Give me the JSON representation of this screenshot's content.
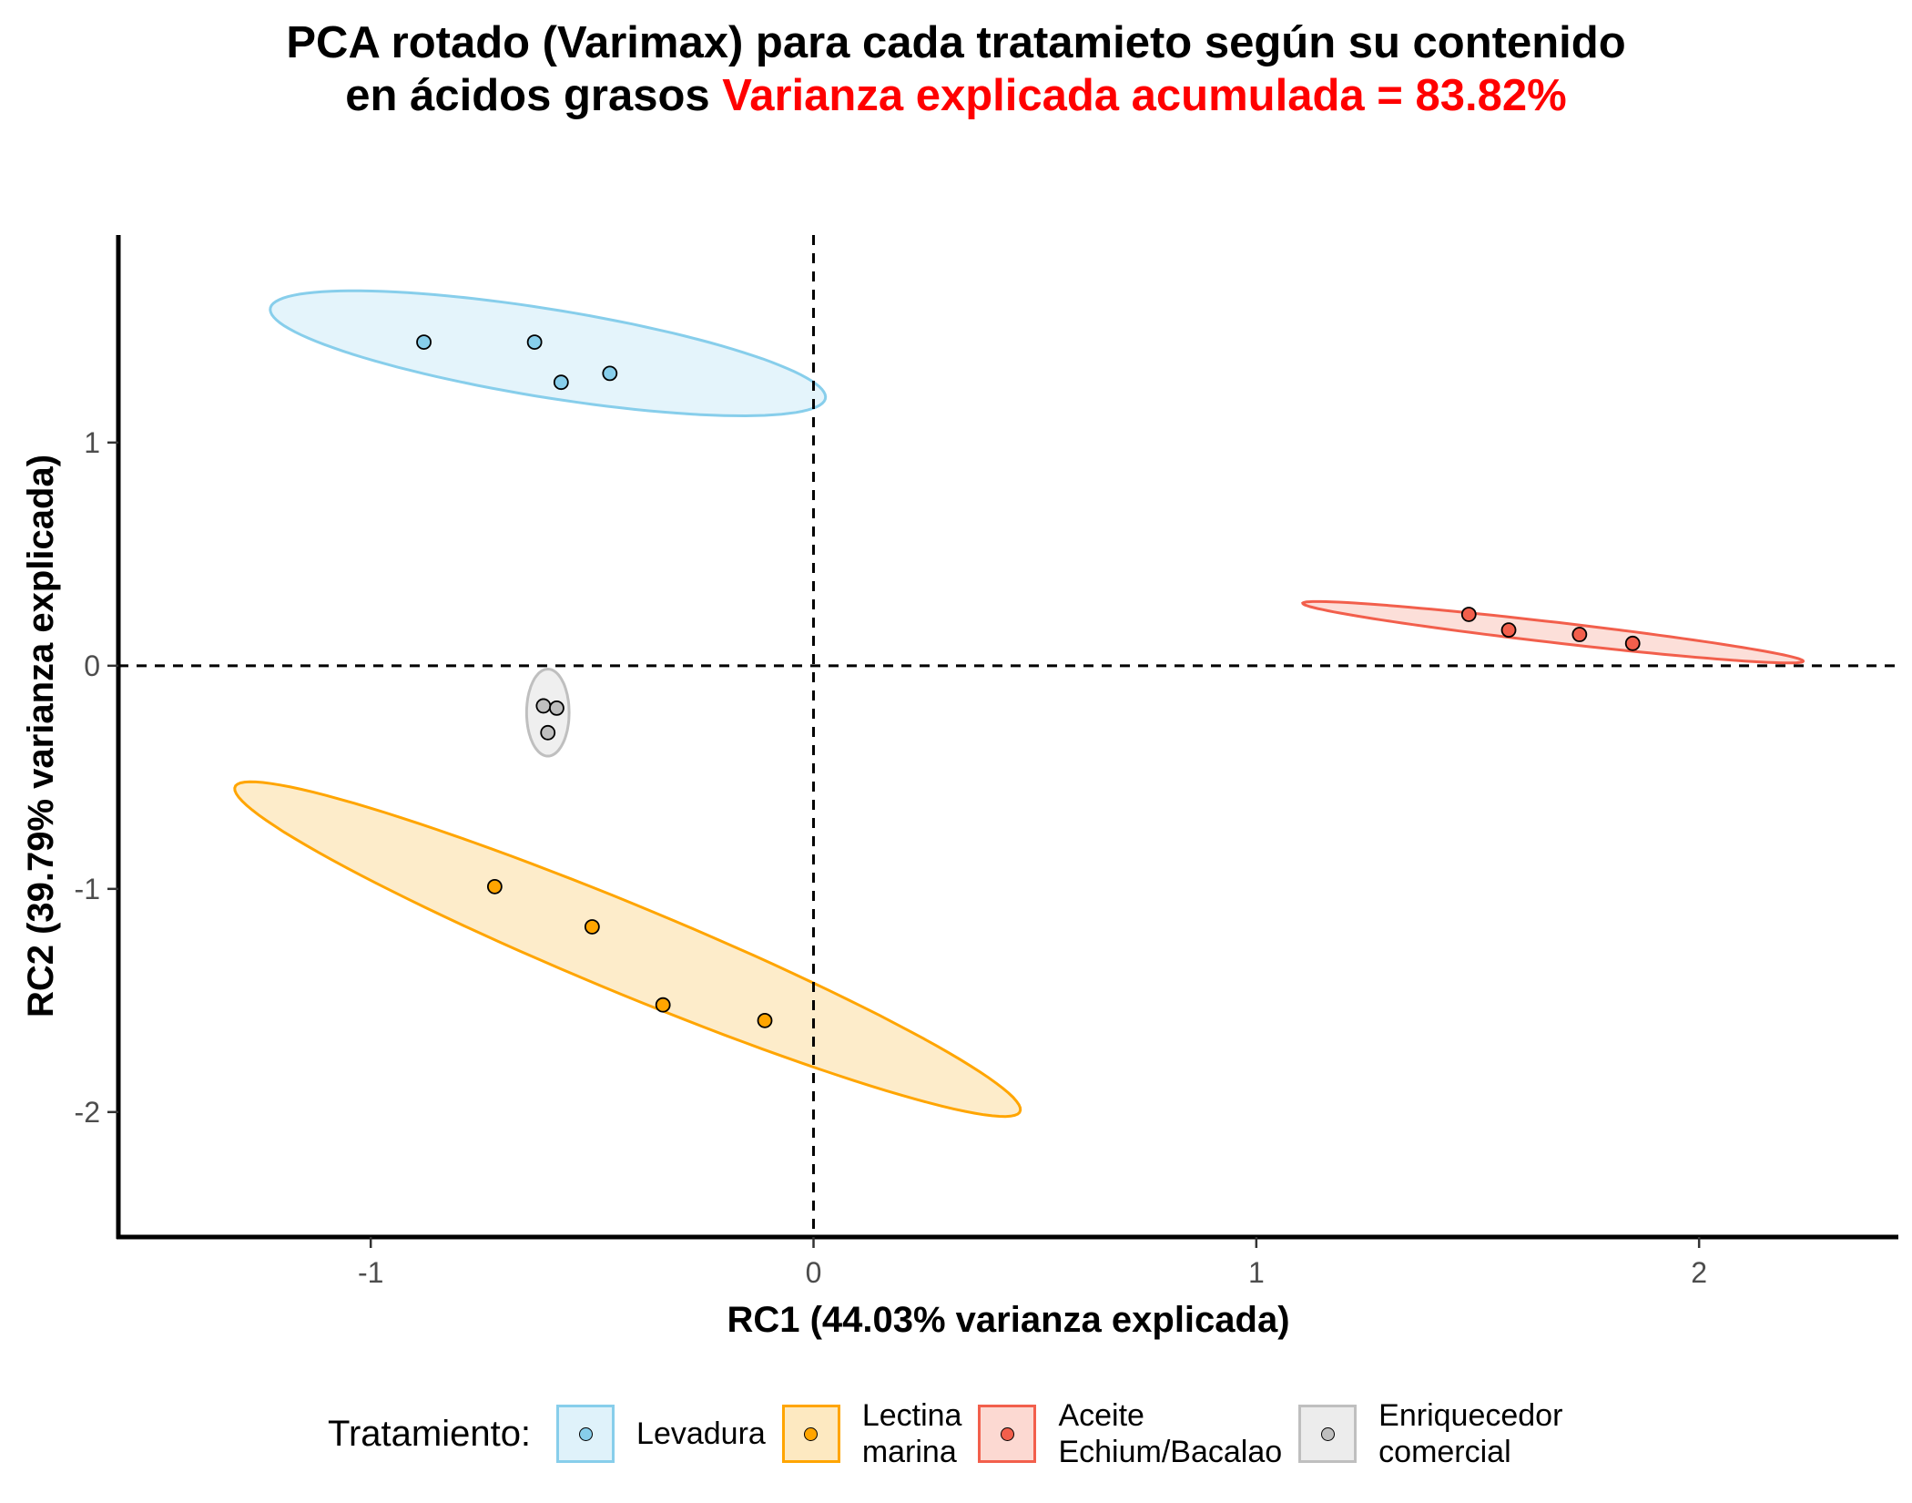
{
  "title": {
    "line1": "PCA rotado (Varimax) para cada tratamieto según su contenido",
    "line2_prefix": "en ácidos grasos ",
    "line2_highlight": "Varianza explicada acumulada = 83.82%",
    "highlight_color": "#ff0000"
  },
  "chart_data": {
    "type": "scatter",
    "xlabel": "RC1 (44.03% varianza explicada)",
    "ylabel": "RC2 (39.79% varianza explicada)",
    "xlim": [
      -1.57,
      2.45
    ],
    "ylim": [
      -2.56,
      1.93
    ],
    "xticks": [
      -1,
      0,
      1,
      2
    ],
    "yticks": [
      1,
      0,
      -1,
      -2
    ],
    "reference_lines": {
      "x": 0,
      "y": 0,
      "style": "dashed"
    },
    "grid": false,
    "legend_position": "bottom",
    "legend_title": "Tratamiento:",
    "series": [
      {
        "name": "Levadura",
        "color": "#87ceeb",
        "fill": "#dff2fa",
        "points": [
          [
            -0.88,
            1.45
          ],
          [
            -0.63,
            1.45
          ],
          [
            -0.57,
            1.27
          ],
          [
            -0.46,
            1.31
          ]
        ],
        "ellipse": {
          "center": [
            -0.6,
            1.4
          ],
          "semi_axes": [
            0.66,
            0.19
          ],
          "angle_deg": -19
        }
      },
      {
        "name": "Lectina\nmarina",
        "color": "#ffa500",
        "fill": "#fde9c1",
        "points": [
          [
            -0.72,
            -0.99
          ],
          [
            -0.5,
            -1.17
          ],
          [
            -0.34,
            -1.52
          ],
          [
            -0.11,
            -1.59
          ]
        ],
        "ellipse": {
          "center": [
            -0.42,
            -1.27
          ],
          "semi_axes": [
            1.15,
            0.165
          ],
          "angle_deg": -40
        }
      },
      {
        "name": "Aceite\nEchium/Bacalao",
        "color": "#f25f4c",
        "fill": "#fcd9d2",
        "points": [
          [
            1.48,
            0.23
          ],
          [
            1.57,
            0.16
          ],
          [
            1.73,
            0.14
          ],
          [
            1.85,
            0.1
          ]
        ],
        "ellipse": {
          "center": [
            1.67,
            0.15
          ],
          "semi_axes": [
            0.58,
            0.045
          ],
          "angle_deg": -13
        }
      },
      {
        "name": "Enriquecedor\ncomercial",
        "color": "#bfbfbf",
        "fill": "#ececec",
        "points": [
          [
            -0.61,
            -0.18
          ],
          [
            -0.58,
            -0.19
          ],
          [
            -0.6,
            -0.3
          ]
        ],
        "ellipse": {
          "center": [
            -0.6,
            -0.21
          ],
          "semi_axes": [
            0.048,
            0.195
          ],
          "angle_deg": 0
        }
      }
    ]
  }
}
